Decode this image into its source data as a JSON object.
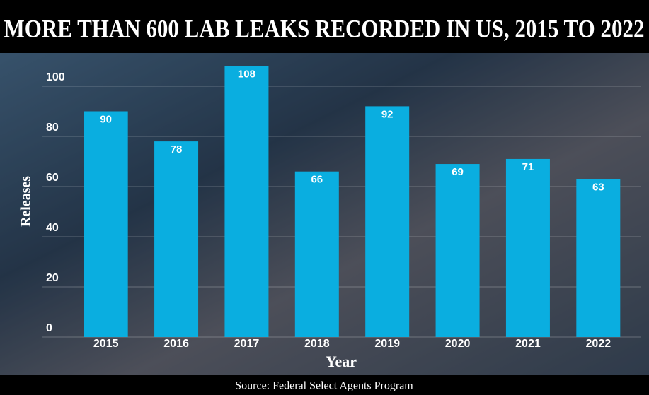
{
  "chart_data": {
    "type": "bar",
    "title": "MORE THAN 600 LAB LEAKS RECORDED IN US, 2015 TO 2022",
    "categories": [
      "2015",
      "2016",
      "2017",
      "2018",
      "2019",
      "2020",
      "2021",
      "2022"
    ],
    "values": [
      90,
      78,
      108,
      66,
      92,
      69,
      71,
      63
    ],
    "color": "#0aaee0",
    "ylim": [
      0,
      110
    ],
    "yticks": [
      0,
      20,
      40,
      60,
      80,
      100
    ],
    "grid": true,
    "y_label": "Releases",
    "x_label": "Year",
    "source": "Source: Federal Select Agents Program"
  }
}
